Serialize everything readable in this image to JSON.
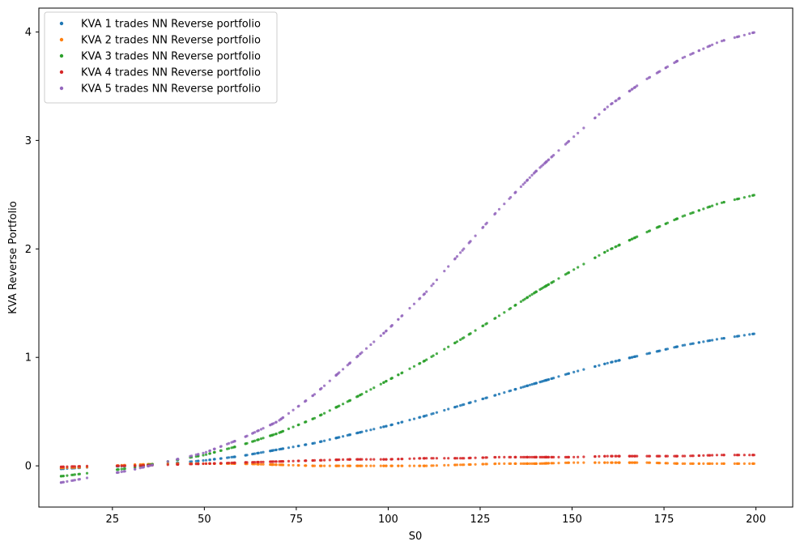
{
  "chart_data": {
    "type": "scatter",
    "xlabel": "S0",
    "ylabel": "KVA Reverse Portfolio",
    "xlim": [
      5,
      210
    ],
    "ylim": [
      -0.38,
      4.22
    ],
    "xticks": [
      "25",
      "50",
      "75",
      "100",
      "125",
      "150",
      "175",
      "200"
    ],
    "yticks": [
      "0",
      "1",
      "2",
      "3",
      "4"
    ],
    "legend_position": "top-left",
    "x_range": [
      10,
      200
    ],
    "series": [
      {
        "name": "KVA 1 trades NN Reverse portfolio",
        "color": "#1f77b4",
        "points": [
          [
            10,
            -0.03
          ],
          [
            20,
            -0.01
          ],
          [
            30,
            0.0
          ],
          [
            40,
            0.02
          ],
          [
            50,
            0.05
          ],
          [
            60,
            0.09
          ],
          [
            70,
            0.15
          ],
          [
            80,
            0.21
          ],
          [
            90,
            0.29
          ],
          [
            100,
            0.37
          ],
          [
            110,
            0.46
          ],
          [
            120,
            0.56
          ],
          [
            130,
            0.66
          ],
          [
            140,
            0.76
          ],
          [
            150,
            0.86
          ],
          [
            160,
            0.95
          ],
          [
            170,
            1.03
          ],
          [
            180,
            1.11
          ],
          [
            190,
            1.17
          ],
          [
            200,
            1.22
          ]
        ]
      },
      {
        "name": "KVA 2 trades NN Reverse portfolio",
        "color": "#ff7f0e",
        "points": [
          [
            10,
            -0.02
          ],
          [
            20,
            -0.01
          ],
          [
            30,
            0.01
          ],
          [
            40,
            0.02
          ],
          [
            50,
            0.02
          ],
          [
            60,
            0.02
          ],
          [
            70,
            0.01
          ],
          [
            80,
            0.0
          ],
          [
            90,
            0.0
          ],
          [
            100,
            0.0
          ],
          [
            110,
            0.0
          ],
          [
            120,
            0.01
          ],
          [
            130,
            0.02
          ],
          [
            140,
            0.02
          ],
          [
            150,
            0.03
          ],
          [
            160,
            0.03
          ],
          [
            170,
            0.03
          ],
          [
            180,
            0.02
          ],
          [
            190,
            0.02
          ],
          [
            200,
            0.02
          ]
        ]
      },
      {
        "name": "KVA 3 trades NN Reverse portfolio",
        "color": "#2ca02c",
        "points": [
          [
            10,
            -0.1
          ],
          [
            20,
            -0.06
          ],
          [
            30,
            -0.02
          ],
          [
            40,
            0.04
          ],
          [
            50,
            0.1
          ],
          [
            60,
            0.19
          ],
          [
            70,
            0.3
          ],
          [
            80,
            0.44
          ],
          [
            90,
            0.61
          ],
          [
            100,
            0.79
          ],
          [
            110,
            0.97
          ],
          [
            120,
            1.17
          ],
          [
            130,
            1.38
          ],
          [
            140,
            1.6
          ],
          [
            150,
            1.8
          ],
          [
            160,
            1.99
          ],
          [
            170,
            2.15
          ],
          [
            180,
            2.3
          ],
          [
            190,
            2.42
          ],
          [
            200,
            2.5
          ]
        ]
      },
      {
        "name": "KVA 4 trades NN Reverse portfolio",
        "color": "#d62728",
        "points": [
          [
            10,
            -0.01
          ],
          [
            20,
            0.0
          ],
          [
            30,
            0.0
          ],
          [
            40,
            0.01
          ],
          [
            50,
            0.02
          ],
          [
            60,
            0.03
          ],
          [
            70,
            0.04
          ],
          [
            80,
            0.05
          ],
          [
            90,
            0.06
          ],
          [
            100,
            0.06
          ],
          [
            110,
            0.07
          ],
          [
            120,
            0.07
          ],
          [
            130,
            0.08
          ],
          [
            140,
            0.08
          ],
          [
            150,
            0.08
          ],
          [
            160,
            0.09
          ],
          [
            170,
            0.09
          ],
          [
            180,
            0.09
          ],
          [
            190,
            0.1
          ],
          [
            200,
            0.1
          ]
        ]
      },
      {
        "name": "KVA 5 trades NN Reverse portfolio",
        "color": "#9467bd",
        "points": [
          [
            10,
            -0.16
          ],
          [
            20,
            -0.1
          ],
          [
            30,
            -0.04
          ],
          [
            40,
            0.04
          ],
          [
            50,
            0.12
          ],
          [
            60,
            0.25
          ],
          [
            70,
            0.41
          ],
          [
            80,
            0.66
          ],
          [
            90,
            0.96
          ],
          [
            100,
            1.26
          ],
          [
            110,
            1.59
          ],
          [
            120,
            1.98
          ],
          [
            130,
            2.36
          ],
          [
            140,
            2.71
          ],
          [
            150,
            3.02
          ],
          [
            160,
            3.32
          ],
          [
            170,
            3.56
          ],
          [
            180,
            3.76
          ],
          [
            190,
            3.91
          ],
          [
            200,
            4.0
          ]
        ]
      }
    ]
  }
}
